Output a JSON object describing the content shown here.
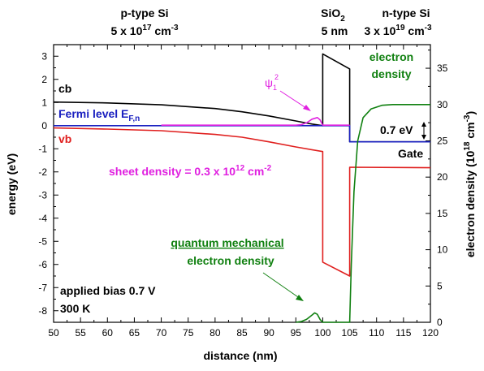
{
  "header": {
    "p_label": "p-type Si",
    "p_doping": "5 x 10",
    "p_doping_exp": "17",
    "p_doping_unit": " cm",
    "p_doping_unit_exp": "-3",
    "oxide_label": "SiO",
    "oxide_sub": "2",
    "oxide_thickness": "5 nm",
    "n_label": "n-type Si",
    "n_doping": "3 x 10",
    "n_doping_exp": "19",
    "n_doping_unit": " cm",
    "n_doping_unit_exp": "-3"
  },
  "annotations": {
    "cb": "cb",
    "vb": "vb",
    "fermi": "Fermi level E",
    "fermi_sub": "F,n",
    "psi": "ψ",
    "psi_sub": "1",
    "psi_sup": "2",
    "sheet": "sheet density = 0.3 x 10",
    "sheet_exp": "12",
    "sheet_unit": " cm",
    "sheet_unit_exp": "-2",
    "electron_density_1": "electron",
    "electron_density_2": "density",
    "voltage_gap": "0.7 eV",
    "gate": "Gate",
    "qm_1": "quantum mechanical",
    "qm_2": "electron density",
    "bias": "applied bias 0.7 V",
    "temp": "300 K"
  },
  "chart_data": {
    "type": "line",
    "xlabel": "distance (nm)",
    "ylabel_left": "energy (eV)",
    "ylabel_right": "electron density (10",
    "ylabel_right_exp": "18",
    "ylabel_right_unit": " cm",
    "ylabel_right_unit_exp": "-3",
    "ylabel_right_close": ")",
    "xlim": [
      50,
      120
    ],
    "ylim_left": [
      -8.5,
      3.5
    ],
    "ylim_right": [
      0,
      38.25
    ],
    "x_ticks": [
      50,
      55,
      60,
      65,
      70,
      75,
      80,
      85,
      90,
      95,
      100,
      105,
      110,
      115,
      120
    ],
    "y_left_ticks": [
      3,
      2,
      1,
      0,
      -1,
      -2,
      -3,
      -4,
      -5,
      -6,
      -7,
      -8
    ],
    "y_right_ticks": [
      0,
      5,
      10,
      15,
      20,
      25,
      30,
      35
    ],
    "series": [
      {
        "label": "cb",
        "axis": "left",
        "color": "#000000",
        "points": [
          [
            50,
            1.02
          ],
          [
            60,
            0.98
          ],
          [
            70,
            0.9
          ],
          [
            80,
            0.74
          ],
          [
            85,
            0.6
          ],
          [
            90,
            0.42
          ],
          [
            95,
            0.2
          ],
          [
            98,
            0.07
          ],
          [
            100,
            0.0
          ],
          [
            100,
            3.1
          ],
          [
            105,
            2.45
          ],
          [
            105,
            -0.7
          ],
          [
            120,
            -0.7
          ]
        ]
      },
      {
        "label": "vb",
        "axis": "left",
        "color": "#e0201f",
        "points": [
          [
            50,
            -0.1
          ],
          [
            60,
            -0.15
          ],
          [
            70,
            -0.22
          ],
          [
            80,
            -0.38
          ],
          [
            85,
            -0.5
          ],
          [
            90,
            -0.7
          ],
          [
            95,
            -0.92
          ],
          [
            100,
            -1.12
          ],
          [
            100,
            -5.9
          ],
          [
            105,
            -6.5
          ],
          [
            105,
            -1.8
          ],
          [
            120,
            -1.82
          ]
        ]
      },
      {
        "label": "Fermi level E_F,n",
        "axis": "left",
        "color": "#1a20c0",
        "points": [
          [
            50,
            0.0
          ],
          [
            105,
            0.0
          ],
          [
            105,
            -0.7
          ],
          [
            120,
            -0.7
          ]
        ]
      },
      {
        "label": "psi_1^2",
        "axis": "left",
        "color": "#e020e0",
        "points": [
          [
            70,
            0.02
          ],
          [
            95,
            0.02
          ],
          [
            96,
            0.04
          ],
          [
            97,
            0.12
          ],
          [
            98,
            0.28
          ],
          [
            99,
            0.35
          ],
          [
            99.5,
            0.25
          ],
          [
            100,
            0.02
          ],
          [
            105,
            0.02
          ]
        ]
      },
      {
        "label": "electron density",
        "axis": "right",
        "color": "#108010",
        "points": [
          [
            95,
            0
          ],
          [
            96,
            0.1
          ],
          [
            97,
            0.4
          ],
          [
            98,
            1.0
          ],
          [
            98.5,
            1.3
          ],
          [
            99,
            1.1
          ],
          [
            99.5,
            0.4
          ],
          [
            100,
            0
          ],
          [
            105,
            0
          ],
          [
            105.3,
            8
          ],
          [
            105.8,
            18
          ],
          [
            106.5,
            25
          ],
          [
            107.5,
            28.2
          ],
          [
            109,
            29.4
          ],
          [
            111,
            29.9
          ],
          [
            113,
            30.0
          ],
          [
            120,
            30.0
          ]
        ]
      }
    ]
  }
}
